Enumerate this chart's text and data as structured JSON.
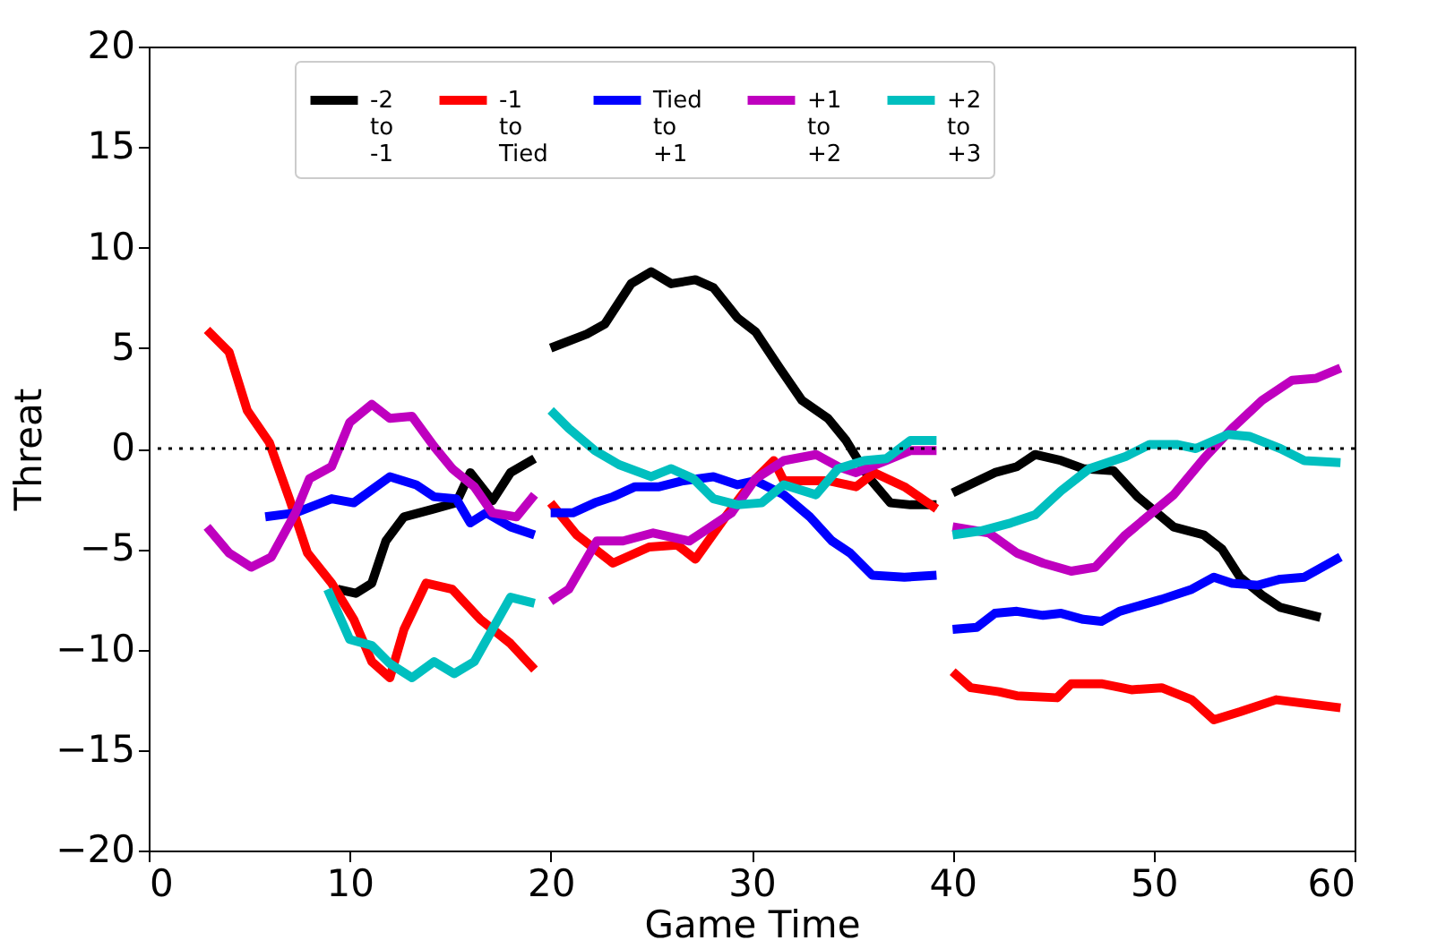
{
  "chart_data": {
    "type": "line",
    "xlabel": "Game Time",
    "ylabel": "Threat",
    "xlim": [
      0,
      60
    ],
    "xticks": [
      0,
      10,
      20,
      30,
      40,
      50,
      60
    ],
    "ylim": [
      -20,
      20
    ],
    "yticks": [
      -20,
      -15,
      -10,
      -5,
      0,
      5,
      10,
      15,
      20
    ],
    "grid": false,
    "legend": "top",
    "line_style": "solid",
    "marker": "none",
    "ref_lines": [
      {
        "axis": "y",
        "value": 0,
        "color": "#000000",
        "line_style": "dotted"
      }
    ],
    "series": [
      {
        "name": "-2 to -1",
        "color": "#000000",
        "x": [
          9.4,
          10.3,
          11.1,
          11.8,
          12.7,
          14.2,
          15.3,
          16.0,
          17.1,
          18.0,
          19.2,
          null,
          20.0,
          21.8,
          22.7,
          24.0,
          25.0,
          26.0,
          27.2,
          28.1,
          29.3,
          30.2,
          31.4,
          32.5,
          33.8,
          34.7,
          35.8,
          36.9,
          37.9,
          39.2,
          null,
          40.0,
          42.1,
          43.2,
          44.1,
          45.4,
          46.5,
          48.0,
          49.2,
          51.0,
          52.5,
          53.4,
          54.3,
          55.4,
          56.3,
          58.3
        ],
        "values": [
          -7.0,
          -7.2,
          -6.7,
          -4.6,
          -3.4,
          -3.0,
          -2.7,
          -1.2,
          -2.6,
          -1.2,
          -0.5,
          null,
          5.0,
          5.7,
          6.2,
          8.2,
          8.8,
          8.2,
          8.4,
          8.0,
          6.5,
          5.8,
          4.0,
          2.4,
          1.5,
          0.4,
          -1.4,
          -2.7,
          -2.8,
          -2.8,
          null,
          -2.2,
          -1.2,
          -0.9,
          -0.3,
          -0.6,
          -1.0,
          -1.1,
          -2.4,
          -3.9,
          -4.3,
          -5.0,
          -6.4,
          -7.3,
          -7.9,
          -8.4
        ]
      },
      {
        "name": "-1 to Tied",
        "color": "#ff0000",
        "x": [
          2.9,
          4.0,
          4.9,
          6.0,
          7.0,
          7.9,
          9.1,
          10.2,
          11.1,
          12.0,
          12.7,
          13.8,
          15.1,
          16.5,
          18.0,
          19.2,
          null,
          20.0,
          21.3,
          23.1,
          24.9,
          26.3,
          27.2,
          28.7,
          29.9,
          31.1,
          31.6,
          33.8,
          35.2,
          36.1,
          37.6,
          39.2,
          null,
          40.0,
          40.9,
          42.3,
          43.2,
          45.2,
          45.9,
          47.4,
          48.9,
          50.4,
          51.9,
          53.0,
          54.3,
          56.1,
          59.3
        ],
        "values": [
          5.9,
          4.8,
          1.9,
          0.3,
          -2.5,
          -5.2,
          -6.7,
          -8.5,
          -10.6,
          -11.4,
          -9.0,
          -6.7,
          -7.0,
          -8.5,
          -9.7,
          -11.0,
          null,
          -2.7,
          -4.3,
          -5.7,
          -4.9,
          -4.8,
          -5.5,
          -3.4,
          -1.8,
          -0.6,
          -1.6,
          -1.6,
          -1.9,
          -1.2,
          -1.9,
          -3.0,
          null,
          -11.1,
          -11.9,
          -12.1,
          -12.3,
          -12.4,
          -11.7,
          -11.7,
          -12.0,
          -11.9,
          -12.5,
          -13.5,
          -13.1,
          -12.5,
          -12.9
        ]
      },
      {
        "name": "Tied to +1",
        "color": "#0000ff",
        "x": [
          5.8,
          7.3,
          9.1,
          10.2,
          12.0,
          13.3,
          14.2,
          15.3,
          16.0,
          16.8,
          18.0,
          19.2,
          null,
          20.0,
          21.1,
          22.2,
          23.1,
          24.2,
          25.4,
          26.6,
          28.1,
          29.3,
          30.2,
          31.6,
          32.9,
          34.0,
          34.9,
          36.0,
          37.6,
          39.2,
          null,
          40.0,
          41.2,
          42.1,
          43.2,
          44.5,
          45.4,
          46.5,
          47.4,
          48.3,
          50.4,
          51.9,
          53.0,
          53.9,
          55.2,
          56.3,
          57.5,
          59.3
        ],
        "values": [
          -3.4,
          -3.2,
          -2.5,
          -2.7,
          -1.4,
          -1.8,
          -2.4,
          -2.5,
          -3.7,
          -3.2,
          -3.9,
          -4.3,
          null,
          -3.2,
          -3.2,
          -2.7,
          -2.4,
          -1.9,
          -1.9,
          -1.6,
          -1.4,
          -1.8,
          -1.6,
          -2.3,
          -3.4,
          -4.6,
          -5.2,
          -6.3,
          -6.4,
          -6.3,
          null,
          -9.0,
          -8.9,
          -8.2,
          -8.1,
          -8.3,
          -8.2,
          -8.5,
          -8.6,
          -8.1,
          -7.5,
          -7.0,
          -6.4,
          -6.7,
          -6.8,
          -6.5,
          -6.4,
          -5.4
        ]
      },
      {
        "name": "+1 to +2",
        "color": "#bf00bf",
        "x": [
          2.9,
          4.0,
          5.1,
          6.1,
          7.3,
          8.0,
          9.1,
          10.0,
          11.1,
          12.0,
          13.1,
          14.2,
          15.1,
          16.2,
          17.1,
          18.3,
          19.2,
          null,
          20.0,
          20.9,
          22.3,
          23.6,
          25.1,
          26.9,
          27.8,
          29.0,
          30.2,
          31.6,
          33.2,
          34.3,
          35.2,
          36.7,
          37.9,
          39.2,
          null,
          40.0,
          41.8,
          43.2,
          44.5,
          45.9,
          47.1,
          48.6,
          51.0,
          52.5,
          53.9,
          55.4,
          56.9,
          58.1,
          59.3
        ],
        "values": [
          -3.9,
          -5.2,
          -5.9,
          -5.4,
          -3.2,
          -1.5,
          -0.9,
          1.3,
          2.2,
          1.5,
          1.6,
          0.1,
          -1.0,
          -1.9,
          -3.2,
          -3.4,
          -2.3,
          null,
          -7.6,
          -7.0,
          -4.6,
          -4.6,
          -4.2,
          -4.6,
          -4.0,
          -3.2,
          -1.5,
          -0.6,
          -0.3,
          -0.9,
          -1.2,
          -0.6,
          -0.1,
          -0.1,
          null,
          -3.9,
          -4.2,
          -5.2,
          -5.7,
          -6.1,
          -5.9,
          -4.3,
          -2.3,
          -0.5,
          1.0,
          2.4,
          3.4,
          3.5,
          4.0
        ]
      },
      {
        "name": "+2 to +3",
        "color": "#00bfbf",
        "x": [
          8.9,
          10.0,
          11.1,
          12.0,
          13.1,
          14.2,
          15.2,
          16.2,
          17.1,
          18.0,
          19.2,
          null,
          20.0,
          20.9,
          22.2,
          23.4,
          25.0,
          26.0,
          27.1,
          28.1,
          29.3,
          30.5,
          31.6,
          33.2,
          34.3,
          35.6,
          36.7,
          37.9,
          39.2,
          null,
          40.0,
          41.4,
          42.9,
          44.1,
          45.4,
          46.8,
          48.6,
          49.8,
          51.2,
          52.1,
          53.7,
          54.8,
          56.3,
          57.5,
          59.3
        ],
        "values": [
          -7.0,
          -9.5,
          -9.8,
          -10.7,
          -11.4,
          -10.6,
          -11.2,
          -10.6,
          -9.0,
          -7.4,
          -7.7,
          null,
          1.9,
          1.0,
          -0.1,
          -0.8,
          -1.4,
          -1.0,
          -1.5,
          -2.5,
          -2.8,
          -2.7,
          -1.8,
          -2.3,
          -1.0,
          -0.6,
          -0.5,
          0.4,
          0.4,
          null,
          -4.3,
          -4.1,
          -3.7,
          -3.3,
          -2.1,
          -1.0,
          -0.4,
          0.2,
          0.2,
          0.0,
          0.7,
          0.6,
          0.0,
          -0.6,
          -0.7
        ]
      }
    ]
  }
}
